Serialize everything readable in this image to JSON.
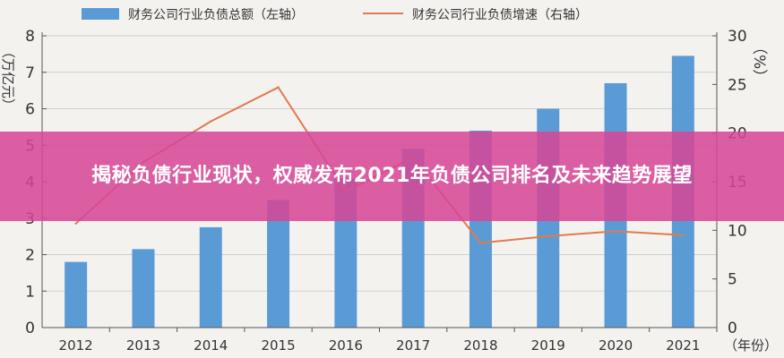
{
  "banner": {
    "title": "揭秘负债行业现状，权威发布2021年负债公司排名及未来趋势展望"
  },
  "colors": {
    "bar": "#5b9bd5",
    "line": "#e07a4f",
    "axis": "#555555",
    "grid": "#cfcfcf",
    "banner": "#d64696"
  },
  "chart_data": {
    "type": "bar",
    "categories": [
      "2012",
      "2013",
      "2014",
      "2015",
      "2016",
      "2017",
      "2018",
      "2019",
      "2020",
      "2021"
    ],
    "series": [
      {
        "name": "财务公司行业负债总额（左轴）",
        "type": "bar",
        "axis": "left",
        "values": [
          1.8,
          2.15,
          2.75,
          3.5,
          4.1,
          4.9,
          5.4,
          6.0,
          6.7,
          7.45
        ]
      },
      {
        "name": "财务公司行业负债增速（右轴）",
        "type": "line",
        "axis": "right",
        "values": [
          10.7,
          17.0,
          21.2,
          24.7,
          14.0,
          17.5,
          8.7,
          9.4,
          9.9,
          9.5
        ]
      }
    ],
    "ylabel_left": "万亿元",
    "ylabel_right": "%",
    "xlabel": "年份",
    "ylim_left": [
      0,
      8
    ],
    "ylim_right": [
      0,
      30
    ],
    "yticks_left": [
      "0",
      "1",
      "2",
      "3",
      "4",
      "5",
      "6",
      "7",
      "8"
    ],
    "yticks_right": [
      "0",
      "5",
      "10",
      "15",
      "20",
      "25",
      "30"
    ],
    "legend_position": "top",
    "grid": true
  }
}
